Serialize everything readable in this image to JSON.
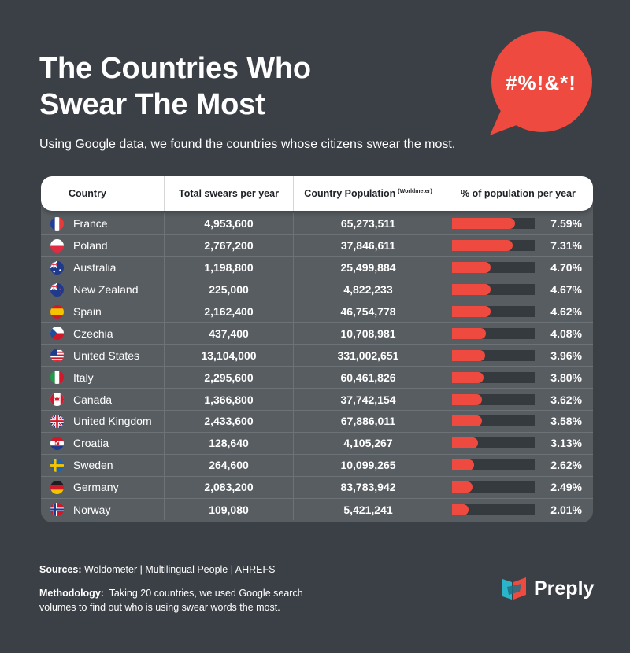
{
  "title_line1": "The Countries Who",
  "title_line2": "Swear The Most",
  "subtitle": "Using Google data, we found the countries whose citizens swear the most.",
  "bubble_text": "#%!&*!",
  "accent_color": "#ef4a3f",
  "background_color": "#3b4046",
  "chart_data": {
    "type": "table",
    "columns": [
      "Country",
      "Total swears per year",
      "Country Population",
      "% of population per year"
    ],
    "population_source_note": "(Worldmeter)",
    "rows": [
      {
        "country": "France",
        "swears": "4,953,600",
        "population": "65,273,511",
        "pct": "7.59%",
        "pct_value": 7.59
      },
      {
        "country": "Poland",
        "swears": "2,767,200",
        "population": "37,846,611",
        "pct": "7.31%",
        "pct_value": 7.31
      },
      {
        "country": "Australia",
        "swears": "1,198,800",
        "population": "25,499,884",
        "pct": "4.70%",
        "pct_value": 4.7
      },
      {
        "country": "New Zealand",
        "swears": "225,000",
        "population": "4,822,233",
        "pct": "4.67%",
        "pct_value": 4.67
      },
      {
        "country": "Spain",
        "swears": "2,162,400",
        "population": "46,754,778",
        "pct": "4.62%",
        "pct_value": 4.62
      },
      {
        "country": "Czechia",
        "swears": "437,400",
        "population": "10,708,981",
        "pct": "4.08%",
        "pct_value": 4.08
      },
      {
        "country": "United States",
        "swears": "13,104,000",
        "population": "331,002,651",
        "pct": "3.96%",
        "pct_value": 3.96
      },
      {
        "country": "Italy",
        "swears": "2,295,600",
        "population": "60,461,826",
        "pct": "3.80%",
        "pct_value": 3.8
      },
      {
        "country": "Canada",
        "swears": "1,366,800",
        "population": "37,742,154",
        "pct": "3.62%",
        "pct_value": 3.62
      },
      {
        "country": "United Kingdom",
        "swears": "2,433,600",
        "population": "67,886,011",
        "pct": "3.58%",
        "pct_value": 3.58
      },
      {
        "country": "Croatia",
        "swears": "128,640",
        "population": "4,105,267",
        "pct": "3.13%",
        "pct_value": 3.13
      },
      {
        "country": "Sweden",
        "swears": "264,600",
        "population": "10,099,265",
        "pct": "2.62%",
        "pct_value": 2.62
      },
      {
        "country": "Germany",
        "swears": "2,083,200",
        "population": "83,783,942",
        "pct": "2.49%",
        "pct_value": 2.49
      },
      {
        "country": "Norway",
        "swears": "109,080",
        "population": "5,421,241",
        "pct": "2.01%",
        "pct_value": 2.01
      }
    ],
    "bar_max": 10
  },
  "sources_label": "Sources:",
  "sources_text": "Woldometer | Multilingual People | AHREFS",
  "methodology_label": "Methodology:",
  "methodology_text": "Taking 20 countries, we used Google search volumes to find out who is using swear words the most.",
  "brand_name": "Preply"
}
